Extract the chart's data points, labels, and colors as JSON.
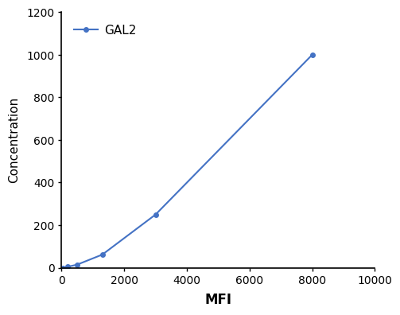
{
  "x": [
    50,
    200,
    500,
    1300,
    3000,
    8000
  ],
  "y": [
    0,
    5,
    15,
    62,
    250,
    1000
  ],
  "line_color": "#4472C4",
  "marker": "o",
  "marker_size": 4,
  "line_width": 1.5,
  "legend_label": "GAL2",
  "xlabel": "MFI",
  "ylabel": "Concentration",
  "xlim": [
    0,
    10000
  ],
  "ylim": [
    0,
    1200
  ],
  "xticks": [
    0,
    2000,
    4000,
    6000,
    8000,
    10000
  ],
  "yticks": [
    0,
    200,
    400,
    600,
    800,
    1000,
    1200
  ],
  "xlabel_fontsize": 12,
  "ylabel_fontsize": 11,
  "tick_fontsize": 10,
  "legend_fontsize": 11,
  "background_color": "#ffffff"
}
